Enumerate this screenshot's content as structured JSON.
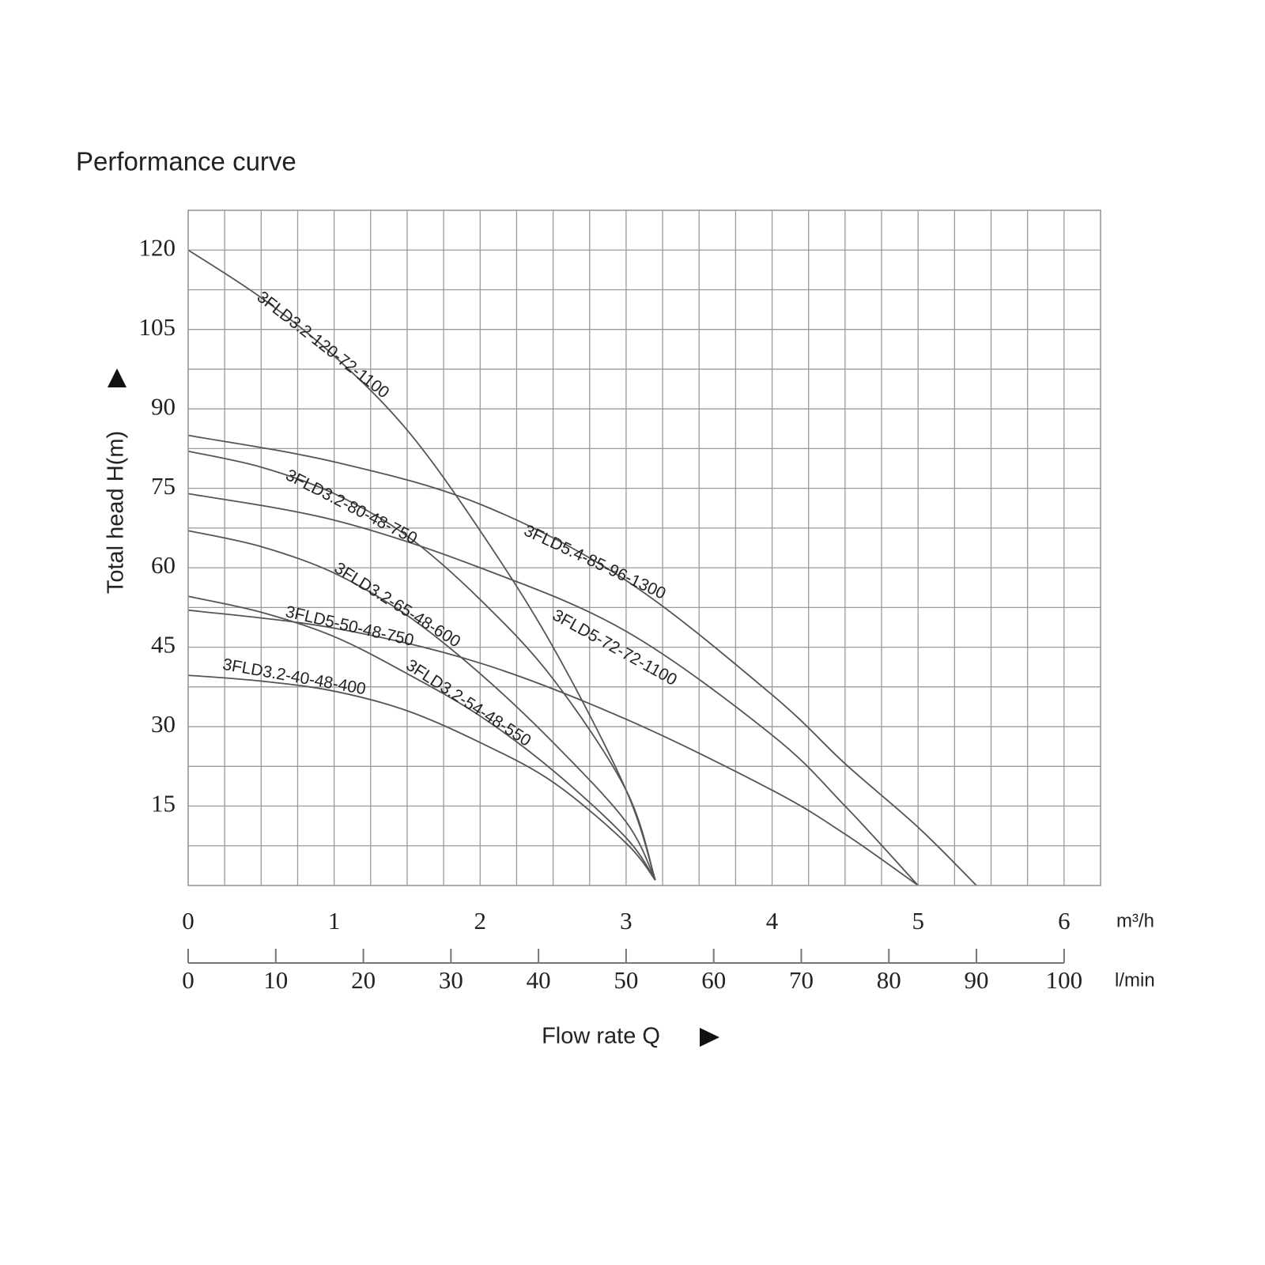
{
  "chart_data": {
    "type": "line",
    "title": "Performance curve",
    "y_label": "Total head H(m)",
    "x_label": "Flow rate Q",
    "x_unit": "m³/h",
    "x2_unit": "l/min",
    "xlim": [
      0,
      6.25
    ],
    "xticks": [
      0,
      1,
      2,
      3,
      4,
      5,
      6
    ],
    "x2lim": [
      0,
      104.1667
    ],
    "x2ticks": [
      0,
      10,
      20,
      30,
      40,
      50,
      60,
      70,
      80,
      90,
      100
    ],
    "ylim": [
      0,
      127.5
    ],
    "yticks": [
      15,
      30,
      45,
      60,
      75,
      90,
      105,
      120
    ],
    "grid": {
      "x": 0.25,
      "y": 7.5
    },
    "series": [
      {
        "name": "3FLD3.2-120-72-1100",
        "color": "#555555",
        "x": [
          0,
          0.5,
          1,
          1.5,
          2,
          2.5,
          3,
          3.2
        ],
        "values": [
          120,
          111,
          100,
          86,
          67,
          45,
          18,
          1
        ]
      },
      {
        "name": "3FLD5.4-85-96-1300",
        "color": "#555555",
        "x": [
          0,
          1,
          2,
          3,
          4,
          4.5,
          5,
          5.4
        ],
        "values": [
          85,
          80,
          72,
          57.6,
          36,
          23,
          11,
          0
        ]
      },
      {
        "name": "3FLD5-72-72-1100",
        "color": "#555555",
        "x": [
          0,
          1,
          2,
          3,
          4,
          4.5,
          5
        ],
        "values": [
          74,
          69,
          60,
          48,
          28.4,
          15,
          0
        ]
      },
      {
        "name": "3FLD3.2-80-48-750",
        "color": "#555555",
        "x": [
          0,
          0.5,
          1,
          1.5,
          2,
          2.5,
          3,
          3.2
        ],
        "values": [
          82,
          79,
          74,
          66,
          54,
          39,
          18,
          1
        ]
      },
      {
        "name": "3FLD3.2-65-48-600",
        "color": "#555555",
        "x": [
          0,
          0.5,
          1,
          1.5,
          2,
          2.5,
          3,
          3.2
        ],
        "values": [
          67,
          64,
          59,
          51,
          40,
          27,
          12,
          1
        ]
      },
      {
        "name": "3FLD3.2-54-48-550",
        "color": "#555555",
        "x": [
          0,
          0.5,
          1,
          1.5,
          2,
          2.5,
          3,
          3.2
        ],
        "values": [
          54.6,
          51.6,
          47,
          40,
          32,
          21.7,
          9,
          1
        ]
      },
      {
        "name": "3FLD5-50-48-750",
        "color": "#555555",
        "x": [
          0,
          1,
          2,
          3,
          4,
          4.5,
          5
        ],
        "values": [
          52,
          48.6,
          42,
          31.4,
          18,
          9.7,
          0
        ]
      },
      {
        "name": "3FLD3.2-40-48-400",
        "color": "#555555",
        "x": [
          0,
          0.5,
          1,
          1.5,
          2,
          2.5,
          3,
          3.2
        ],
        "values": [
          39.7,
          38.6,
          36.7,
          33,
          27,
          19.5,
          8,
          1
        ]
      }
    ]
  }
}
